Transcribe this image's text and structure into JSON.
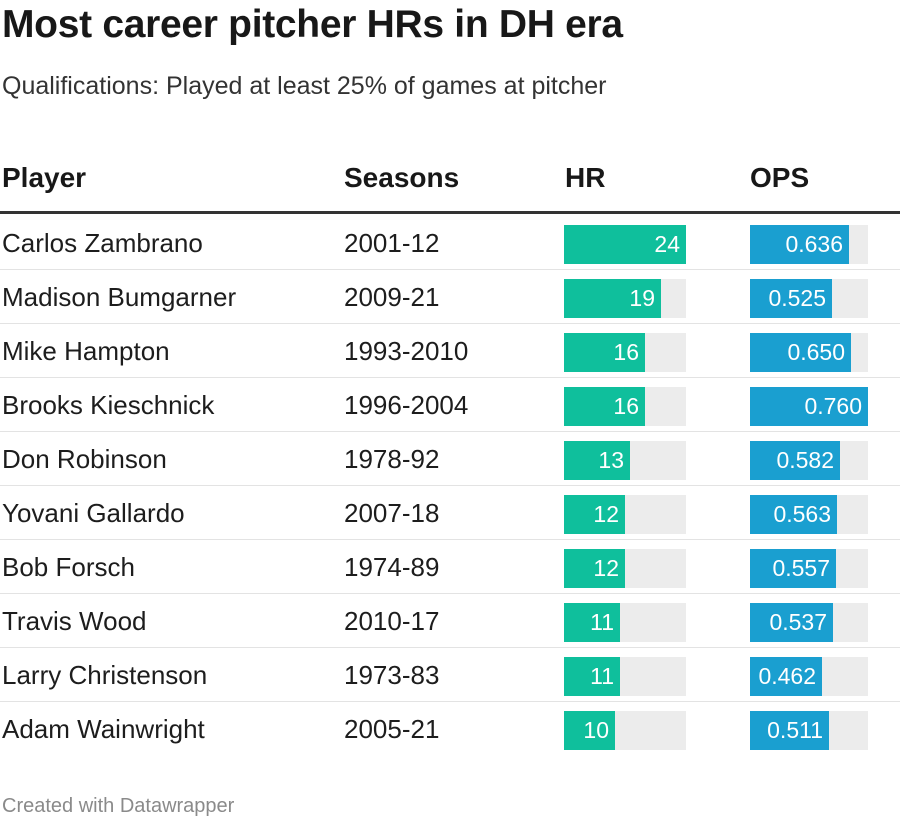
{
  "title": "Most career pitcher HRs in DH era",
  "subtitle": "Qualifications: Played at least 25% of games at pitcher",
  "footer": "Created with Datawrapper",
  "colors": {
    "hr_bar": "#0fbf9c",
    "ops_bar": "#1a9fd0",
    "bar_track": "#ececec"
  },
  "chart_data": {
    "type": "table",
    "columns": [
      "Player",
      "Seasons",
      "HR",
      "OPS"
    ],
    "hr_max": 24,
    "ops_max": 0.76,
    "rows": [
      {
        "player": "Carlos Zambrano",
        "seasons": "2001-12",
        "hr": 24,
        "hr_label": "24",
        "ops": 0.636,
        "ops_label": "0.636"
      },
      {
        "player": "Madison Bumgarner",
        "seasons": "2009-21",
        "hr": 19,
        "hr_label": "19",
        "ops": 0.525,
        "ops_label": "0.525"
      },
      {
        "player": "Mike Hampton",
        "seasons": "1993-2010",
        "hr": 16,
        "hr_label": "16",
        "ops": 0.65,
        "ops_label": "0.650"
      },
      {
        "player": "Brooks Kieschnick",
        "seasons": "1996-2004",
        "hr": 16,
        "hr_label": "16",
        "ops": 0.76,
        "ops_label": "0.760"
      },
      {
        "player": "Don Robinson",
        "seasons": "1978-92",
        "hr": 13,
        "hr_label": "13",
        "ops": 0.582,
        "ops_label": "0.582"
      },
      {
        "player": "Yovani Gallardo",
        "seasons": "2007-18",
        "hr": 12,
        "hr_label": "12",
        "ops": 0.563,
        "ops_label": "0.563"
      },
      {
        "player": "Bob Forsch",
        "seasons": "1974-89",
        "hr": 12,
        "hr_label": "12",
        "ops": 0.557,
        "ops_label": "0.557"
      },
      {
        "player": "Travis Wood",
        "seasons": "2010-17",
        "hr": 11,
        "hr_label": "11",
        "ops": 0.537,
        "ops_label": "0.537"
      },
      {
        "player": "Larry Christenson",
        "seasons": "1973-83",
        "hr": 11,
        "hr_label": "11",
        "ops": 0.462,
        "ops_label": "0.462"
      },
      {
        "player": "Adam Wainwright",
        "seasons": "2005-21",
        "hr": 10,
        "hr_label": "10",
        "ops": 0.511,
        "ops_label": "0.511"
      }
    ]
  }
}
